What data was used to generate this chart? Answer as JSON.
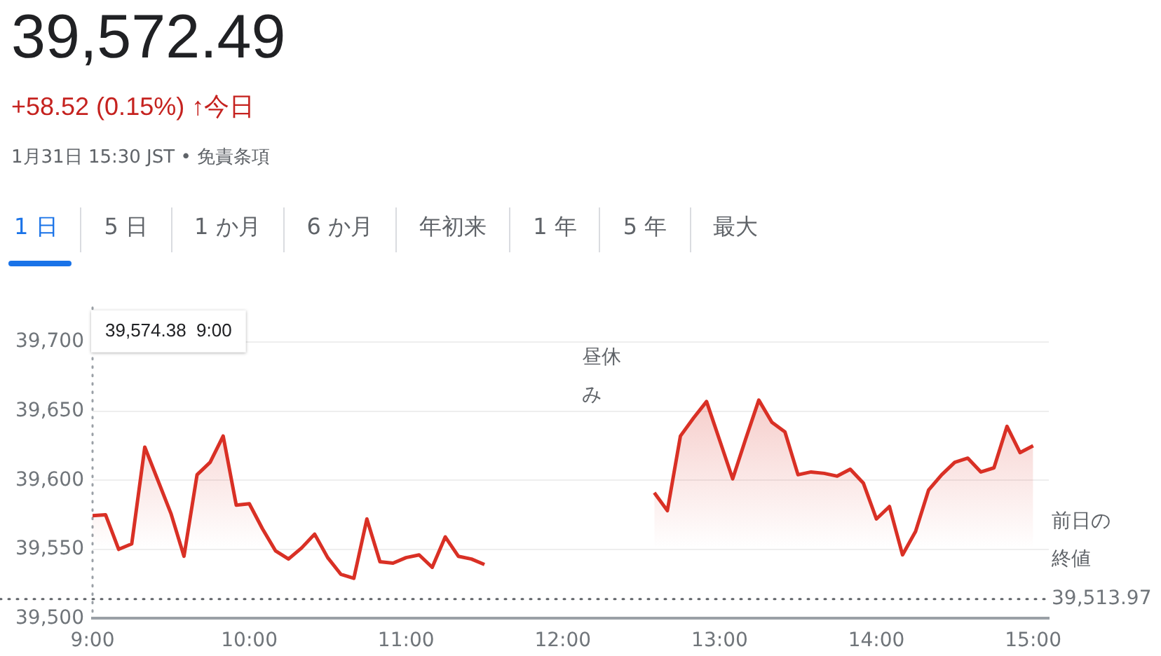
{
  "chart_data": {
    "type": "area",
    "title": "39,572.49",
    "subtitle": "+58.52 (0.15%) ↑今日",
    "annotations": [
      "1月31日 15:30 JST • 免責条項",
      "1 日",
      "5 日",
      "1 か月",
      "6 か月",
      "年初来",
      "1 年",
      "5 年",
      "最大",
      "39,574.38  9:00",
      "昼休み",
      {
        "text": "39,513.97",
        "x": 15.1,
        "y": 39513.97
      }
    ],
    "x": [
      9,
      9.0833,
      9.1667,
      9.25,
      9.3333,
      9.4167,
      9.5,
      9.5833,
      9.6667,
      9.75,
      9.8333,
      9.9167,
      10,
      10.0833,
      10.1667,
      10.25,
      10.3333,
      10.4167,
      10.5,
      10.5833,
      10.6667,
      10.75,
      10.8333,
      10.9167,
      11,
      11.0833,
      11.1667,
      11.25,
      11.3333,
      11.4167,
      11.5,
      12,
      12.5833,
      12.6667,
      12.75,
      12.8333,
      12.9167,
      13,
      13.0833,
      13.1667,
      13.25,
      13.3333,
      13.4167,
      13.5,
      13.5833,
      13.6667,
      13.75,
      13.8333,
      13.9167,
      14,
      14.0833,
      14.1667,
      14.25,
      14.3333,
      14.4167,
      14.5,
      14.5833,
      14.6667,
      14.75,
      14.8333,
      14.9167,
      15
    ],
    "series": [
      {
        "color": "#d93025",
        "values": [
          39574.38,
          39575,
          39550,
          39554,
          39624,
          39600,
          39576,
          39545,
          39604,
          39613,
          39632,
          39582,
          39583,
          39565,
          39549,
          39543,
          39551,
          39561,
          39544,
          39532,
          39529,
          39572,
          39541,
          39540,
          39544,
          39546,
          39537,
          39559,
          39545,
          39543,
          39539,
          null,
          39591,
          39578,
          39632,
          39645,
          39657,
          39629,
          39601,
          39630,
          39658,
          39642,
          39635,
          39604,
          39606,
          39605,
          39603,
          39608,
          39598,
          39572,
          39581,
          39546,
          39563,
          39593,
          39604,
          39613,
          39616,
          39606,
          39609,
          39639,
          39620,
          39625
        ]
      }
    ],
    "xlim": [
      9,
      15.1
    ],
    "ylim": [
      39500,
      39725
    ],
    "xticks": [
      {
        "value": 9,
        "label": "9:00"
      },
      {
        "value": 10,
        "label": "10:00"
      },
      {
        "value": 11,
        "label": "11:00"
      },
      {
        "value": 12,
        "label": "12:00"
      },
      {
        "value": 13,
        "label": "13:00"
      },
      {
        "value": 14,
        "label": "14:00"
      },
      {
        "value": 15,
        "label": "15:00"
      }
    ],
    "yticks": [
      {
        "value": 39500,
        "label": "39,500"
      },
      {
        "value": 39550,
        "label": "39,550"
      },
      {
        "value": 39600,
        "label": "39,600"
      },
      {
        "value": 39650,
        "label": "39,650"
      },
      {
        "value": 39700,
        "label": "39,700"
      }
    ],
    "ref_lines": [
      {
        "axis": "y",
        "value": 39513.97,
        "label": "前日の終値",
        "line_style": "dotted",
        "color": "#5f6368"
      },
      {
        "axis": "x",
        "value": 9,
        "line_style": "dotted",
        "color": "#9aa0a6"
      }
    ],
    "grid": "y",
    "legend": false,
    "marker": "none",
    "line_style": "solid"
  }
}
